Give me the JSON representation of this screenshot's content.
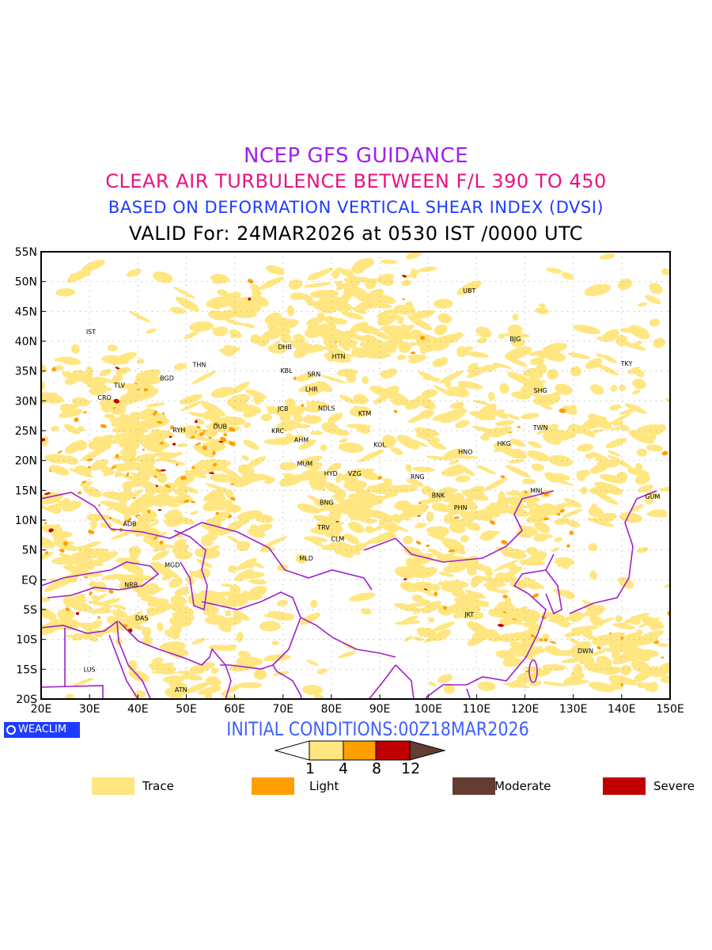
{
  "titles": {
    "line1": "NCEP GFS GUIDANCE",
    "line2": "CLEAR AIR TURBULENCE BETWEEN F/L 390 TO 450",
    "line3": "BASED ON DEFORMATION VERTICAL SHEAR INDEX (DVSI)",
    "line4": "VALID For: 24MAR2026 at 0530 IST /0000 UTC"
  },
  "map": {
    "lon_range": [
      20,
      150
    ],
    "lat_range": [
      -20,
      55
    ],
    "lon_ticks": [
      "20E",
      "30E",
      "40E",
      "50E",
      "60E",
      "70E",
      "80E",
      "90E",
      "100E",
      "110E",
      "120E",
      "130E",
      "140E",
      "150E"
    ],
    "lat_ticks": [
      "55N",
      "50N",
      "45N",
      "40N",
      "35N",
      "30N",
      "25N",
      "20N",
      "15N",
      "10N",
      "5N",
      "EQ",
      "5S",
      "10S",
      "15S",
      "20S"
    ],
    "boundary_color": "#a020c8",
    "stations": [
      {
        "code": "IST",
        "lon": 30.3,
        "lat": 41.6
      },
      {
        "code": "TLV",
        "lon": 36.2,
        "lat": 32.6
      },
      {
        "code": "CRO",
        "lon": 33.1,
        "lat": 30.6
      },
      {
        "code": "BGD",
        "lon": 46.0,
        "lat": 33.8
      },
      {
        "code": "THN",
        "lon": 52.7,
        "lat": 36.1
      },
      {
        "code": "RYH",
        "lon": 48.5,
        "lat": 25.1
      },
      {
        "code": "DUB",
        "lon": 57.0,
        "lat": 25.7
      },
      {
        "code": "DHB",
        "lon": 70.4,
        "lat": 39.1
      },
      {
        "code": "KBL",
        "lon": 70.7,
        "lat": 35.1
      },
      {
        "code": "SRN",
        "lon": 76.4,
        "lat": 34.5
      },
      {
        "code": "LHR",
        "lon": 75.9,
        "lat": 32.0
      },
      {
        "code": "HTN",
        "lon": 81.5,
        "lat": 37.5
      },
      {
        "code": "JCB",
        "lon": 70.0,
        "lat": 28.7
      },
      {
        "code": "NDLS",
        "lon": 79.0,
        "lat": 28.8
      },
      {
        "code": "KTM",
        "lon": 86.9,
        "lat": 27.9
      },
      {
        "code": "KRC",
        "lon": 68.9,
        "lat": 25.0
      },
      {
        "code": "AHM",
        "lon": 73.8,
        "lat": 23.5
      },
      {
        "code": "KOL",
        "lon": 90.0,
        "lat": 22.7
      },
      {
        "code": "MUM",
        "lon": 74.5,
        "lat": 19.5
      },
      {
        "code": "HYD",
        "lon": 79.9,
        "lat": 17.8
      },
      {
        "code": "VZG",
        "lon": 84.8,
        "lat": 17.8
      },
      {
        "code": "BNG",
        "lon": 79.0,
        "lat": 13.0
      },
      {
        "code": "TRV",
        "lon": 78.4,
        "lat": 8.8
      },
      {
        "code": "CLM",
        "lon": 81.3,
        "lat": 6.9
      },
      {
        "code": "MLD",
        "lon": 74.8,
        "lat": 3.6
      },
      {
        "code": "RNG",
        "lon": 97.8,
        "lat": 17.3
      },
      {
        "code": "HNO",
        "lon": 107.7,
        "lat": 21.5
      },
      {
        "code": "HKG",
        "lon": 115.7,
        "lat": 22.9
      },
      {
        "code": "BNK",
        "lon": 102.1,
        "lat": 14.2
      },
      {
        "code": "PHN",
        "lon": 106.7,
        "lat": 12.1
      },
      {
        "code": "MNL",
        "lon": 122.5,
        "lat": 15.0
      },
      {
        "code": "JKT",
        "lon": 108.5,
        "lat": -5.8
      },
      {
        "code": "UBT",
        "lon": 108.5,
        "lat": 48.5
      },
      {
        "code": "BJG",
        "lon": 118.0,
        "lat": 40.4
      },
      {
        "code": "TKY",
        "lon": 141.0,
        "lat": 36.3
      },
      {
        "code": "SHG",
        "lon": 123.2,
        "lat": 31.8
      },
      {
        "code": "TWN",
        "lon": 123.2,
        "lat": 25.5
      },
      {
        "code": "GUM",
        "lon": 146.4,
        "lat": 14.0
      },
      {
        "code": "ADB",
        "lon": 38.3,
        "lat": 9.4
      },
      {
        "code": "MGD",
        "lon": 47.1,
        "lat": 2.5
      },
      {
        "code": "NRB",
        "lon": 38.6,
        "lat": -0.8
      },
      {
        "code": "DAS",
        "lon": 40.8,
        "lat": -6.4
      },
      {
        "code": "LUS",
        "lon": 30.0,
        "lat": -15.0
      },
      {
        "code": "ATN",
        "lon": 48.9,
        "lat": -18.4
      },
      {
        "code": "DWN",
        "lon": 132.5,
        "lat": -11.9
      }
    ]
  },
  "logo": "WEACLIM",
  "initial_conditions": "INITIAL CONDITIONS:00Z18MAR2026",
  "colorbar": {
    "levels": [
      "1",
      "4",
      "8",
      "12"
    ],
    "colors": [
      "#ffe680",
      "#ffa000",
      "#c00000",
      "#643c32"
    ]
  },
  "legend": [
    {
      "label": "Trace",
      "color": "#ffe680"
    },
    {
      "label": "Light",
      "color": "#ffa000"
    },
    {
      "label": "Moderate",
      "color": "#643c32"
    },
    {
      "label": "Severe",
      "color": "#c00000"
    }
  ]
}
